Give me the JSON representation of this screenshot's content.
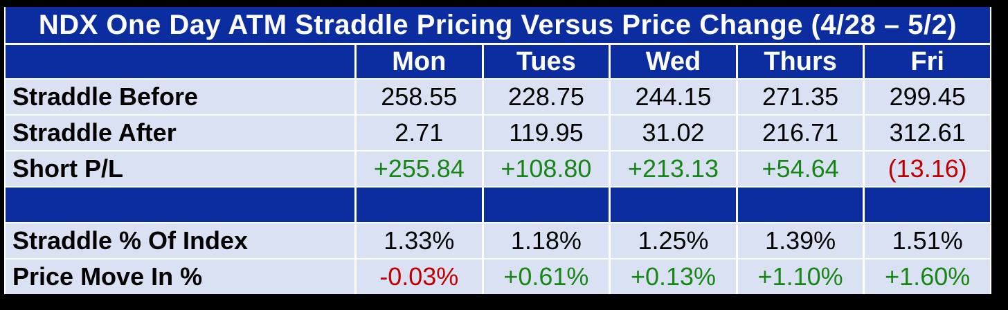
{
  "title": "NDX One Day ATM Straddle Pricing Versus Price Change (4/28 – 5/2)",
  "colors": {
    "header_blue": "#0B2DA0",
    "row_light_blue": "#D9E1F2",
    "positive_green": "#178617",
    "negative_red": "#C00000",
    "gridline_white": "#FFFFFF",
    "frame_black": "#000000"
  },
  "table": {
    "columns": [
      "Mon",
      "Tues",
      "Wed",
      "Thurs",
      "Fri"
    ],
    "rows": [
      {
        "type": "data",
        "label": "Straddle Before",
        "values": [
          {
            "text": "258.55",
            "tone": "neutral"
          },
          {
            "text": "228.75",
            "tone": "neutral"
          },
          {
            "text": "244.15",
            "tone": "neutral"
          },
          {
            "text": "271.35",
            "tone": "neutral"
          },
          {
            "text": "299.45",
            "tone": "neutral"
          }
        ]
      },
      {
        "type": "data",
        "label": "Straddle After",
        "values": [
          {
            "text": "2.71",
            "tone": "neutral"
          },
          {
            "text": "119.95",
            "tone": "neutral"
          },
          {
            "text": "31.02",
            "tone": "neutral"
          },
          {
            "text": "216.71",
            "tone": "neutral"
          },
          {
            "text": "312.61",
            "tone": "neutral"
          }
        ]
      },
      {
        "type": "data",
        "label": "Short P/L",
        "values": [
          {
            "text": "+255.84",
            "tone": "pos"
          },
          {
            "text": "+108.80",
            "tone": "pos"
          },
          {
            "text": "+213.13",
            "tone": "pos"
          },
          {
            "text": "+54.64",
            "tone": "pos"
          },
          {
            "text": "(13.16)",
            "tone": "neg"
          }
        ]
      },
      {
        "type": "spacer"
      },
      {
        "type": "data",
        "label": "Straddle % Of Index",
        "values": [
          {
            "text": "1.33%",
            "tone": "neutral"
          },
          {
            "text": "1.18%",
            "tone": "neutral"
          },
          {
            "text": "1.25%",
            "tone": "neutral"
          },
          {
            "text": "1.39%",
            "tone": "neutral"
          },
          {
            "text": "1.51%",
            "tone": "neutral"
          }
        ]
      },
      {
        "type": "data",
        "label": "Price Move In %",
        "values": [
          {
            "text": "-0.03%",
            "tone": "neg"
          },
          {
            "text": "+0.61%",
            "tone": "pos"
          },
          {
            "text": "+0.13%",
            "tone": "pos"
          },
          {
            "text": "+1.10%",
            "tone": "pos"
          },
          {
            "text": "+1.60%",
            "tone": "pos"
          }
        ]
      }
    ]
  },
  "chart_data": {
    "type": "table",
    "title": "NDX One Day ATM Straddle Pricing Versus Price Change (4/28 – 5/2)",
    "columns": [
      "",
      "Mon",
      "Tues",
      "Wed",
      "Thurs",
      "Fri"
    ],
    "rows": [
      [
        "Straddle Before",
        "258.55",
        "228.75",
        "244.15",
        "271.35",
        "299.45"
      ],
      [
        "Straddle After",
        "2.71",
        "119.95",
        "31.02",
        "216.71",
        "312.61"
      ],
      [
        "Short P/L",
        "+255.84",
        "+108.80",
        "+213.13",
        "+54.64",
        "(13.16)"
      ],
      [
        "",
        "",
        "",
        "",
        "",
        ""
      ],
      [
        "Straddle % Of Index",
        "1.33%",
        "1.18%",
        "1.25%",
        "1.39%",
        "1.51%"
      ],
      [
        "Price Move In %",
        "-0.03%",
        "+0.61%",
        "+0.13%",
        "+1.10%",
        "+1.60%"
      ]
    ],
    "legend": "green = positive, red = negative (parentheses/minus)"
  }
}
